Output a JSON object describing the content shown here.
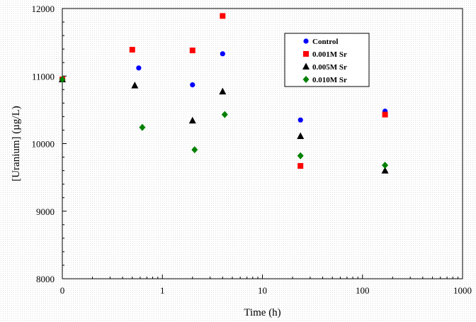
{
  "chart_data": {
    "type": "scatter",
    "xlabel": "Time (h)",
    "ylabel": "[Uranium]  (µg/L)",
    "xscale": "log",
    "xlim": [
      0.1,
      1000
    ],
    "ylim": [
      8000,
      12000
    ],
    "x_tick_labels": [
      "0",
      "1",
      "10",
      "100",
      "1000"
    ],
    "y_ticks": [
      8000,
      9000,
      10000,
      11000,
      12000
    ],
    "legend_position": "top-right",
    "series": [
      {
        "name": "Control",
        "marker": "circle",
        "color": "#0000ff",
        "points": [
          [
            0.1,
            10950
          ],
          [
            0.58,
            11120
          ],
          [
            2.0,
            10870
          ],
          [
            4.0,
            11330
          ],
          [
            24,
            10350
          ],
          [
            168,
            10480
          ]
        ]
      },
      {
        "name": "0.001M Sr",
        "marker": "square",
        "color": "#ff0000",
        "points": [
          [
            0.1,
            10950
          ],
          [
            0.5,
            11390
          ],
          [
            2.0,
            11380
          ],
          [
            4.0,
            11890
          ],
          [
            24,
            9670
          ],
          [
            168,
            10430
          ]
        ]
      },
      {
        "name": "0.005M Sr",
        "marker": "triangle",
        "color": "#000000",
        "points": [
          [
            0.1,
            10950
          ],
          [
            0.53,
            10860
          ],
          [
            2.0,
            10340
          ],
          [
            4.0,
            10770
          ],
          [
            24,
            10110
          ],
          [
            168,
            9600
          ]
        ]
      },
      {
        "name": "0.010M Sr",
        "marker": "diamond",
        "color": "#008000",
        "points": [
          [
            0.1,
            10950
          ],
          [
            0.63,
            10240
          ],
          [
            2.1,
            9910
          ],
          [
            4.2,
            10430
          ],
          [
            24,
            9820
          ],
          [
            168,
            9680
          ]
        ]
      }
    ]
  }
}
